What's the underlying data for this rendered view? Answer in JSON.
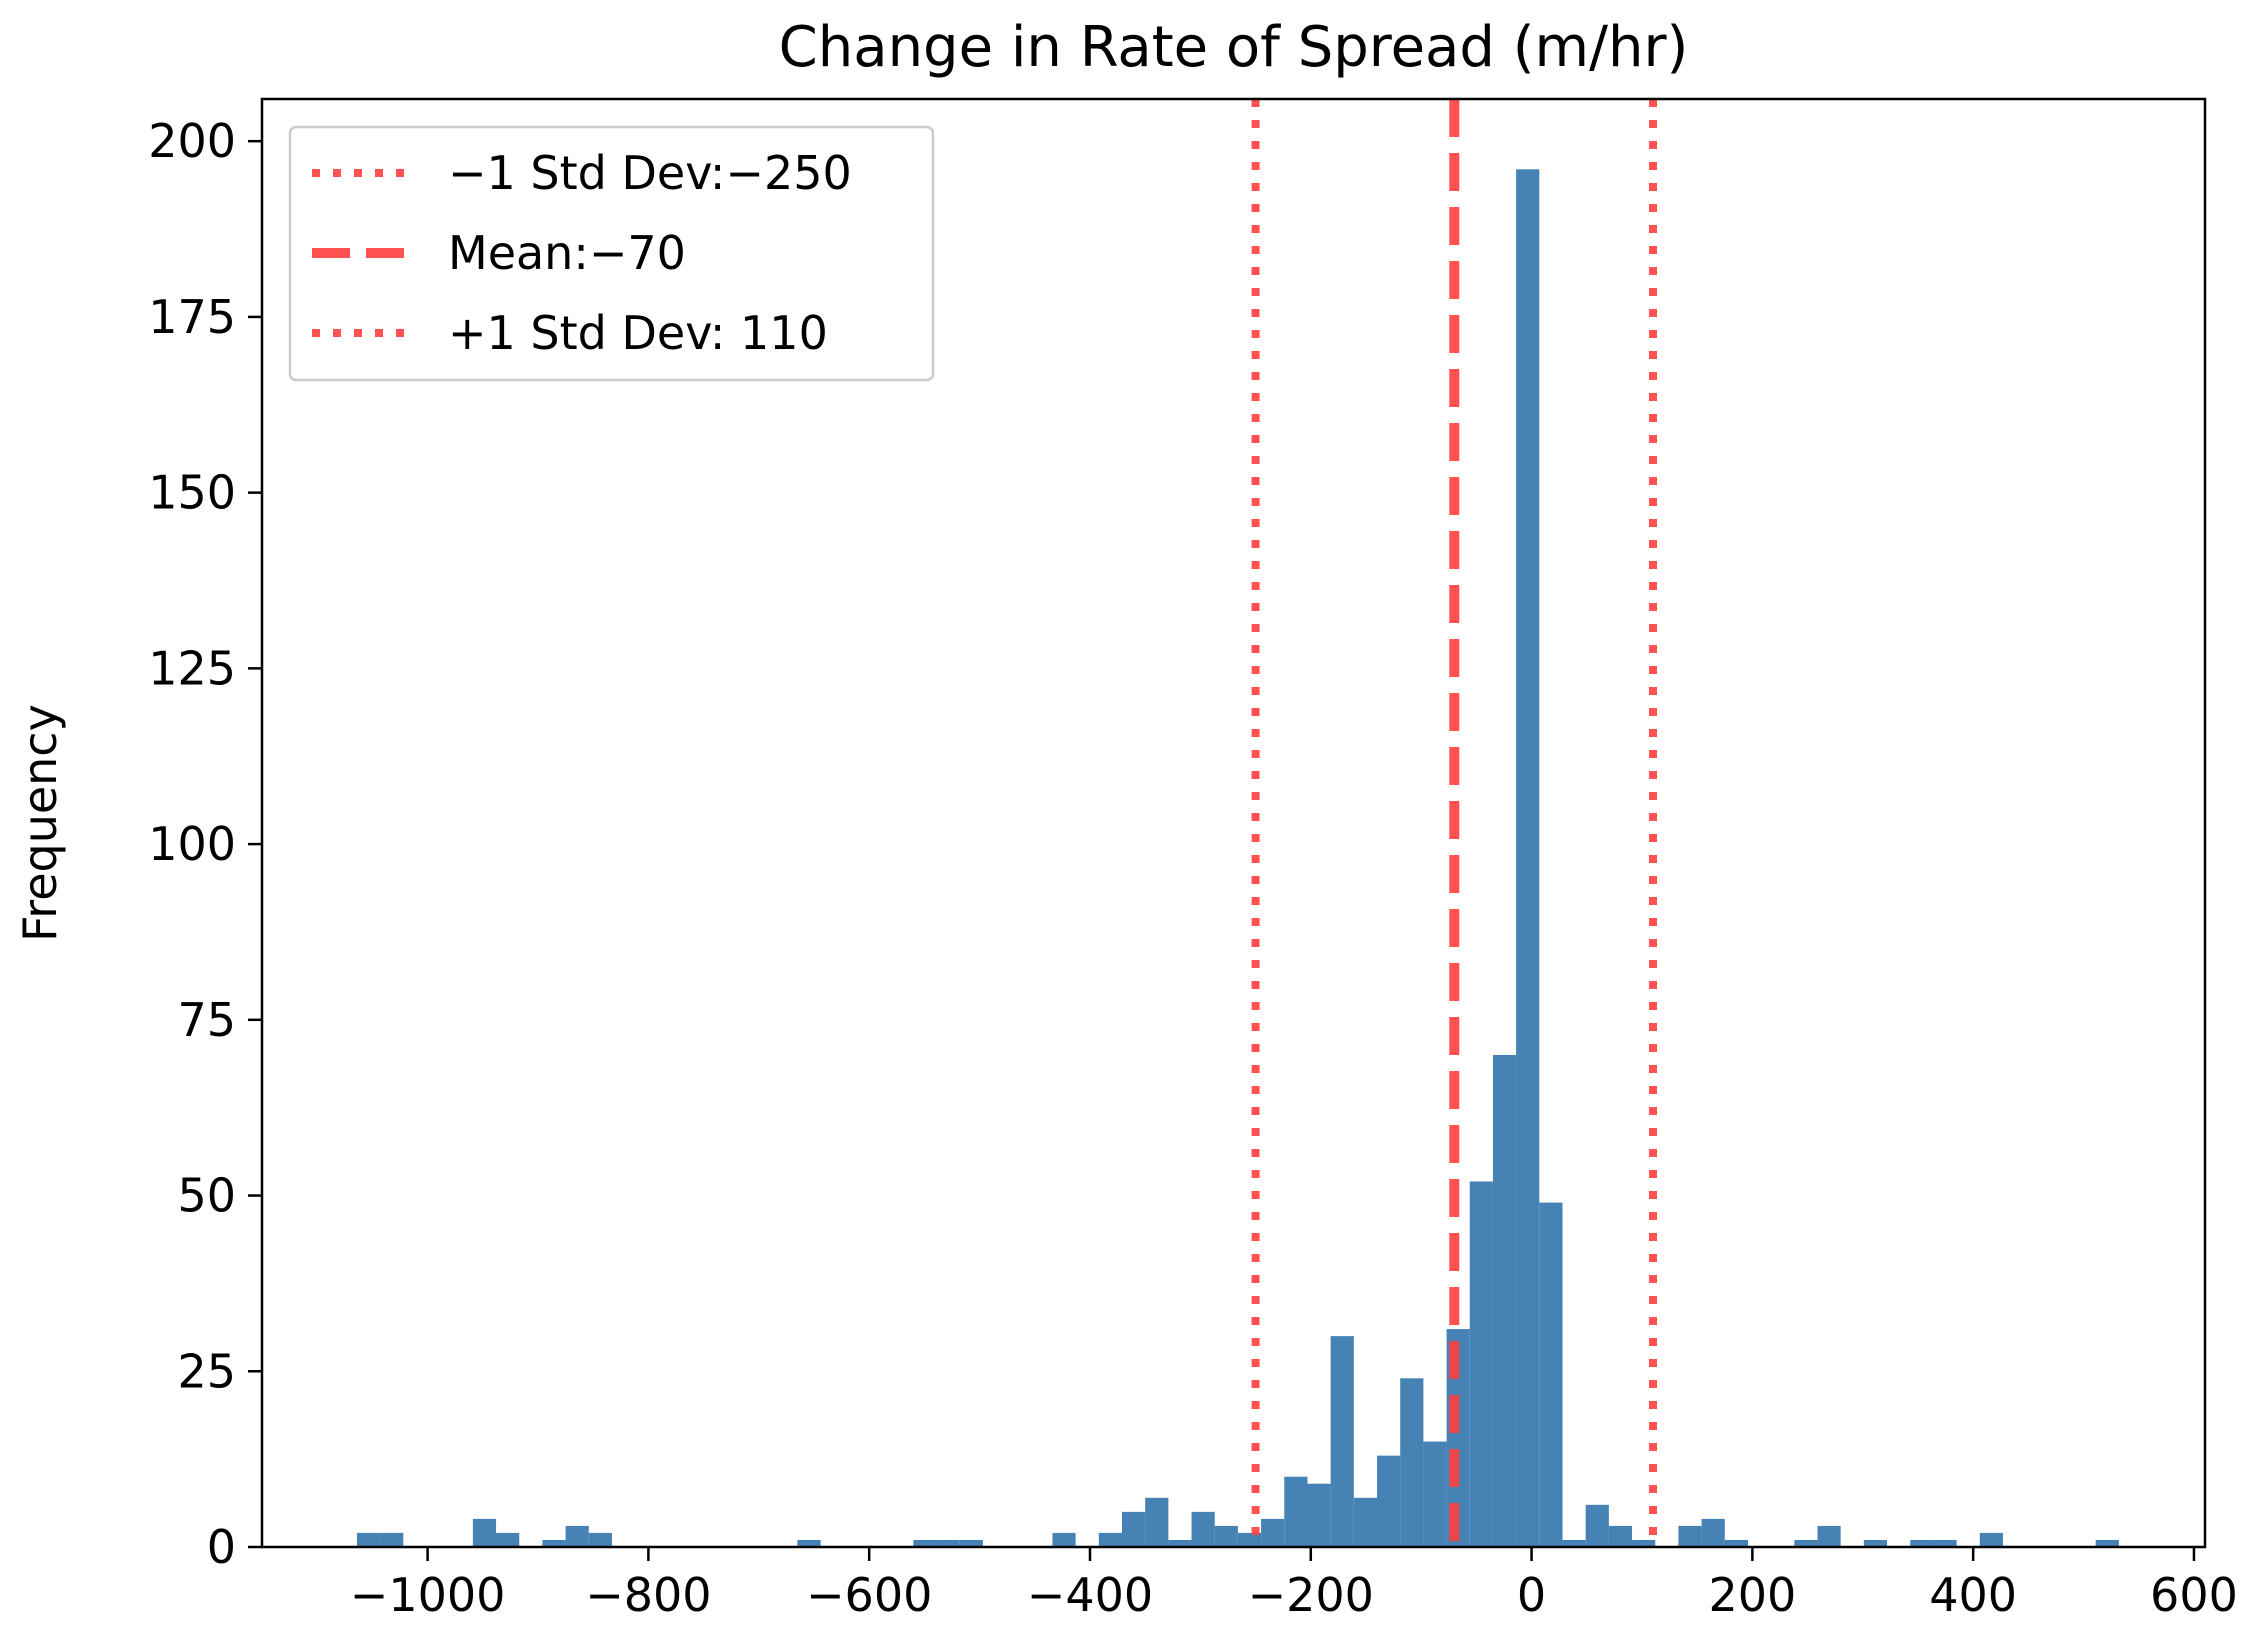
{
  "chart_data": {
    "type": "bar",
    "title": "Change in Rate of Spread (m/hr)",
    "xlabel": "",
    "ylabel": "Frequency",
    "xlim": [
      -1150,
      610
    ],
    "ylim": [
      0,
      206
    ],
    "xticks": [
      -1000,
      -800,
      -600,
      -400,
      -200,
      0,
      200,
      400,
      600
    ],
    "xtick_labels": [
      "−1000",
      "−800",
      "−600",
      "−400",
      "−200",
      "0",
      "200",
      "400",
      "600"
    ],
    "yticks": [
      0,
      25,
      50,
      75,
      100,
      125,
      150,
      175,
      200
    ],
    "ytick_labels": [
      "0",
      "25",
      "50",
      "75",
      "100",
      "125",
      "150",
      "175",
      "200"
    ],
    "grid": false,
    "legend_position": "top-left",
    "bar_color": "#4682b4",
    "bin_width": 21,
    "bins": [
      {
        "x0": -1064,
        "count": 2
      },
      {
        "x0": -1043,
        "count": 2
      },
      {
        "x0": -959,
        "count": 4
      },
      {
        "x0": -938,
        "count": 2
      },
      {
        "x0": -896,
        "count": 1
      },
      {
        "x0": -875,
        "count": 3
      },
      {
        "x0": -854,
        "count": 2
      },
      {
        "x0": -665,
        "count": 1
      },
      {
        "x0": -560,
        "count": 1
      },
      {
        "x0": -539,
        "count": 1
      },
      {
        "x0": -518,
        "count": 1
      },
      {
        "x0": -434,
        "count": 2
      },
      {
        "x0": -392,
        "count": 2
      },
      {
        "x0": -371,
        "count": 5
      },
      {
        "x0": -350,
        "count": 7
      },
      {
        "x0": -329,
        "count": 1
      },
      {
        "x0": -308,
        "count": 5
      },
      {
        "x0": -287,
        "count": 3
      },
      {
        "x0": -266,
        "count": 2
      },
      {
        "x0": -245,
        "count": 4
      },
      {
        "x0": -224,
        "count": 10
      },
      {
        "x0": -203,
        "count": 9
      },
      {
        "x0": -182,
        "count": 30
      },
      {
        "x0": -161,
        "count": 7
      },
      {
        "x0": -140,
        "count": 13
      },
      {
        "x0": -119,
        "count": 24
      },
      {
        "x0": -98,
        "count": 15
      },
      {
        "x0": -77,
        "count": 31
      },
      {
        "x0": -56,
        "count": 52
      },
      {
        "x0": -35,
        "count": 70
      },
      {
        "x0": -14,
        "count": 196
      },
      {
        "x0": 7,
        "count": 49
      },
      {
        "x0": 28,
        "count": 1
      },
      {
        "x0": 49,
        "count": 6
      },
      {
        "x0": 70,
        "count": 3
      },
      {
        "x0": 91,
        "count": 1
      },
      {
        "x0": 133,
        "count": 3
      },
      {
        "x0": 154,
        "count": 4
      },
      {
        "x0": 175,
        "count": 1
      },
      {
        "x0": 238,
        "count": 1
      },
      {
        "x0": 259,
        "count": 3
      },
      {
        "x0": 301,
        "count": 1
      },
      {
        "x0": 343,
        "count": 1
      },
      {
        "x0": 364,
        "count": 1
      },
      {
        "x0": 406,
        "count": 2
      },
      {
        "x0": 511,
        "count": 1
      }
    ],
    "reference_lines": [
      {
        "name": "minus-1-std",
        "value": -250,
        "label": "−1 Std Dev:−250",
        "style": "dotted",
        "color": "#ff4040"
      },
      {
        "name": "mean",
        "value": -70,
        "label": " Mean:−70",
        "style": "dashed",
        "color": "#ff4040"
      },
      {
        "name": "plus-1-std",
        "value": 110,
        "label": " +1 Std Dev: 110",
        "style": "dotted",
        "color": "#ff4040"
      }
    ]
  }
}
